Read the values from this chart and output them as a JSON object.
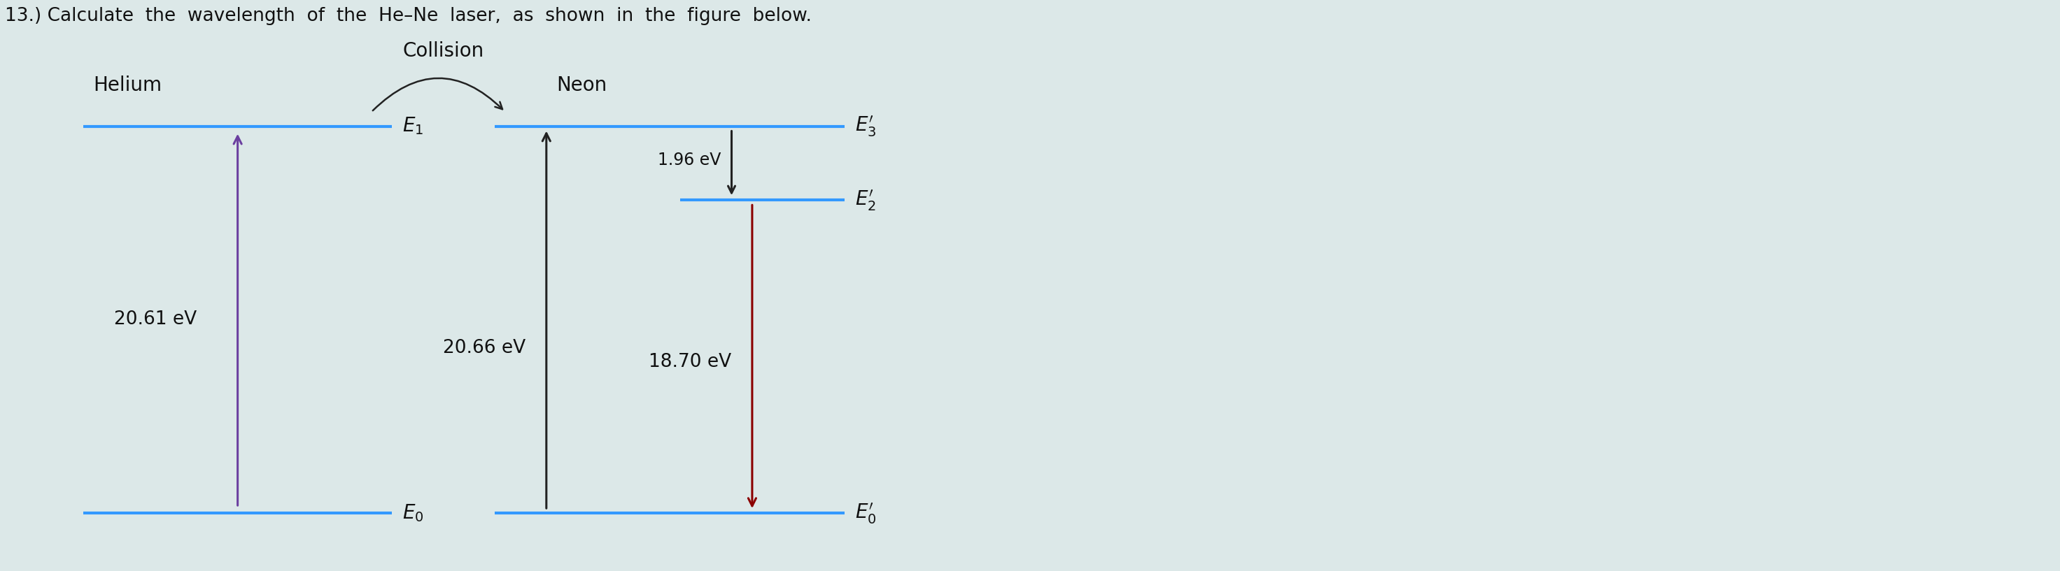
{
  "title": "13.) Calculate  the  wavelength  of  the  He–Ne  laser,  as  shown  in  the  figure  below.",
  "title_fontsize": 19,
  "background_color": "#dce8e8",
  "energy_level_color": "#3399ff",
  "he_energy_text": "20.61 eV",
  "ne_energy_text1": "20.66 eV",
  "ne_energy_text2": "18.70 eV",
  "ne_1_96": "1.96 eV",
  "helium_label": "Helium",
  "neon_label": "Neon",
  "collision_label": "Collision",
  "arrow_color_up": "#6b3fa0",
  "arrow_color_laser": "#8b0000",
  "arrow_color_dark": "#222222"
}
